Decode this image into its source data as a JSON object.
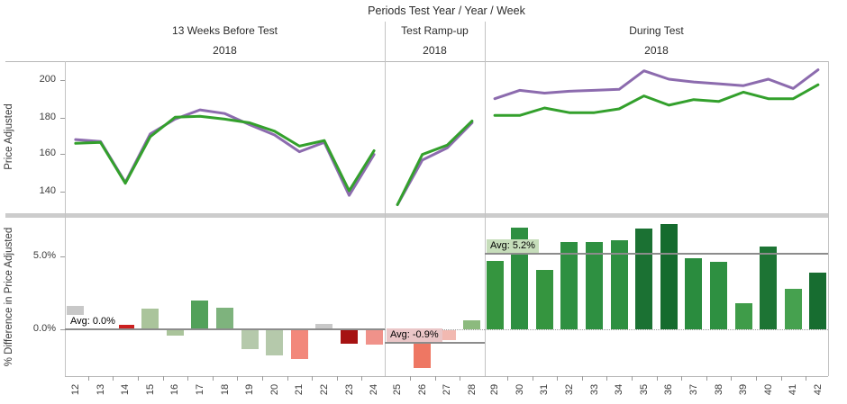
{
  "header": {
    "title": "Periods Test Year / Year / Week"
  },
  "axes": {
    "top": {
      "label": "Price Adjusted",
      "ticks": [
        200,
        180,
        160,
        140
      ]
    },
    "bottom": {
      "label": "% Difference in Price Adjusted",
      "ticks": [
        "5.0%",
        "0.0%"
      ]
    }
  },
  "chart_data": {
    "type": [
      "line",
      "bar"
    ],
    "title": "Periods Test Year / Year / Week",
    "legend": "none shown",
    "grid": "zero line dotted in lower row only",
    "colors": {
      "purple_line": "#8c6bae",
      "green_line": "#33a02c",
      "avg_line": "#8c8c8c",
      "panel_border": "#c3c3c3"
    },
    "top_row": {
      "ylabel": "Price Adjusted",
      "yticks": [
        200,
        180,
        160,
        140
      ],
      "ylim": [
        128,
        210
      ]
    },
    "bottom_row": {
      "ylabel": "% Difference in Price Adjusted",
      "yticks": [
        "5.0%",
        "0.0%"
      ],
      "ylim": [
        -3.2,
        7.7
      ]
    },
    "panels": [
      {
        "label": "13 Weeks Before Test",
        "year": "2018",
        "weeks": [
          12,
          13,
          14,
          15,
          16,
          17,
          18,
          19,
          20,
          21,
          22,
          23,
          24
        ],
        "lines": {
          "purple": [
            168,
            167,
            145,
            171,
            179,
            184,
            182,
            176,
            170.5,
            161.5,
            166.5,
            138,
            160
          ],
          "green": [
            166,
            166.5,
            144.5,
            169.5,
            180,
            180.5,
            179,
            177,
            172.5,
            164.5,
            167.5,
            140.5,
            162
          ]
        },
        "bars": {
          "values": [
            1.6,
            0.0,
            0.3,
            1.4,
            -0.4,
            2.0,
            1.5,
            -1.3,
            -1.7,
            -2.0,
            0.4,
            -0.9,
            -1.0
          ],
          "colors": [
            "#c8c8c8",
            "#c8c8c8",
            "#cc2020",
            "#aac49b",
            "#aac49b",
            "#52a15a",
            "#7eb37d",
            "#b5c9ab",
            "#b5c9ab",
            "#f2887b",
            "#c8c8c8",
            "#a61212",
            "#f0928a"
          ]
        },
        "avg": {
          "label": "Avg: 0.0%",
          "value": 0.0,
          "label_bg": "#ffffff"
        }
      },
      {
        "label": "Test Ramp-up",
        "year": "2018",
        "weeks": [
          25,
          26,
          27,
          28
        ],
        "lines": {
          "purple": [
            133,
            157,
            163.5,
            177
          ],
          "green": [
            133,
            160,
            165,
            178
          ]
        },
        "bars": {
          "values": [
            -0.5,
            -2.6,
            -0.7,
            0.6
          ],
          "colors": [
            "#e9a19b",
            "#ee7763",
            "#f2b9b1",
            "#8cba7e"
          ]
        },
        "avg": {
          "label": "Avg: -0.9%",
          "value": -0.9,
          "label_bg": "#eac6c7"
        }
      },
      {
        "label": "During Test",
        "year": "2018",
        "weeks": [
          29,
          30,
          31,
          32,
          33,
          34,
          35,
          36,
          37,
          38,
          39,
          40,
          41,
          42
        ],
        "lines": {
          "purple": [
            190,
            194.5,
            193,
            194,
            194.5,
            195,
            205,
            200.5,
            199,
            198,
            197,
            200.5,
            195.5,
            205.5
          ],
          "green": [
            181,
            181,
            185,
            182.5,
            182.5,
            184.5,
            191.5,
            186.5,
            189.5,
            188.5,
            193.5,
            190,
            190,
            197.5
          ]
        },
        "bars": {
          "values": [
            4.7,
            7.0,
            4.1,
            6.0,
            6.0,
            6.1,
            6.9,
            7.2,
            4.9,
            4.6,
            1.8,
            5.7,
            2.8,
            3.9
          ],
          "colors": [
            "#35953f",
            "#2e8f41",
            "#35953f",
            "#2e9041",
            "#2e9041",
            "#2e9041",
            "#1b7133",
            "#156b2e",
            "#2a8c3e",
            "#2e9041",
            "#3f9c49",
            "#1d7434",
            "#46a14f",
            "#176d30"
          ]
        },
        "avg": {
          "label": "Avg: 5.2%",
          "value": 5.2,
          "label_bg": "#c6ddba"
        }
      }
    ]
  }
}
